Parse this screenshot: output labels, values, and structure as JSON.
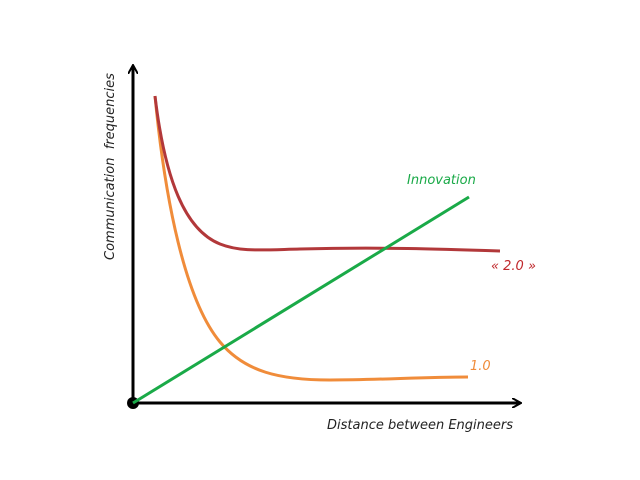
{
  "diagram": {
    "y_axis_label": "Communication  frequencies",
    "x_axis_label": "Distance between Engineers",
    "series": [
      {
        "name": "Innovation",
        "color": "#1aaa48",
        "trend": "linear increase"
      },
      {
        "name": "« 2.0 »",
        "color": "#b2383a",
        "trend": "sharp decay then high plateau"
      },
      {
        "name": "1.0",
        "color": "#f08c3a",
        "trend": "sharp decay then low plateau"
      }
    ]
  }
}
